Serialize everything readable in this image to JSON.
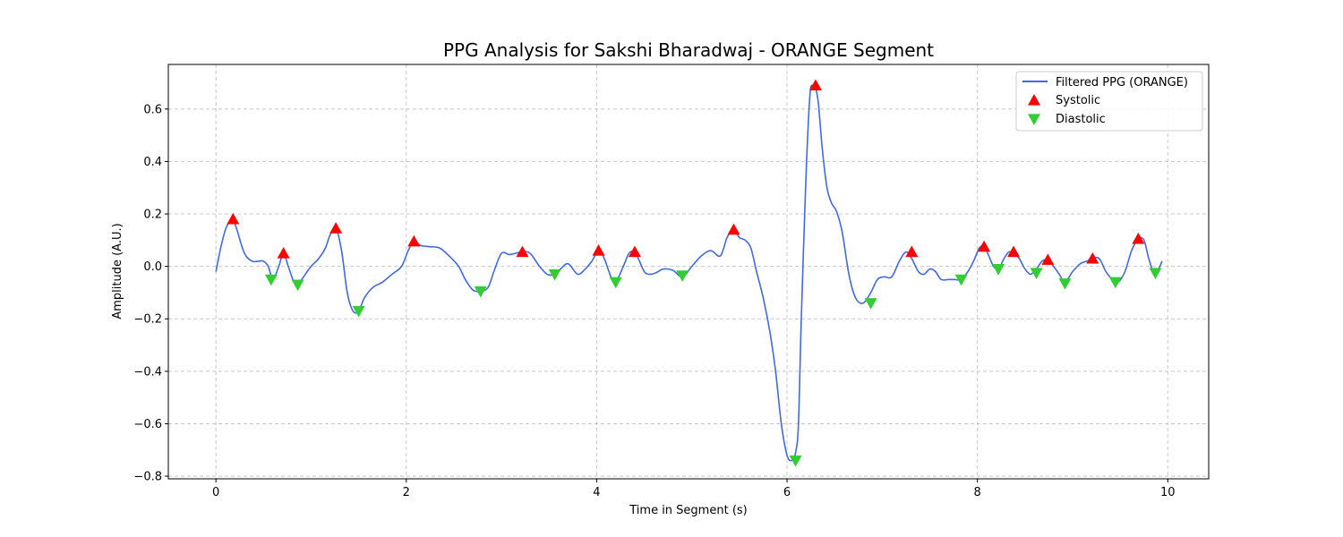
{
  "chart_data": {
    "type": "line",
    "title": "PPG Analysis for Sakshi Bharadwaj - ORANGE Segment",
    "xlabel": "Time in Segment (s)",
    "ylabel": "Amplitude (A.U.)",
    "xlim": [
      -0.5,
      10.43
    ],
    "ylim": [
      -0.81,
      0.77
    ],
    "xticks": [
      0,
      2,
      4,
      6,
      8,
      10
    ],
    "yticks": [
      -0.8,
      -0.6,
      -0.4,
      -0.2,
      0.0,
      0.2,
      0.4,
      0.6
    ],
    "xtick_labels": [
      "0",
      "2",
      "4",
      "6",
      "8",
      "10"
    ],
    "ytick_labels": [
      "−0.8",
      "−0.6",
      "−0.4",
      "−0.2",
      "0.0",
      "0.2",
      "0.4",
      "0.6"
    ],
    "grid": true,
    "legend_position": "top-right",
    "colors": {
      "line": "#4169e1",
      "systolic": "#ff0000",
      "diastolic": "#32cd32"
    },
    "series": [
      {
        "name": "Filtered PPG (ORANGE)",
        "kind": "line",
        "x": [
          0.0,
          0.05,
          0.1,
          0.15,
          0.18,
          0.22,
          0.3,
          0.38,
          0.45,
          0.5,
          0.55,
          0.6,
          0.66,
          0.71,
          0.76,
          0.82,
          0.86,
          0.92,
          1.0,
          1.08,
          1.15,
          1.2,
          1.26,
          1.32,
          1.38,
          1.44,
          1.5,
          1.56,
          1.65,
          1.75,
          1.85,
          1.95,
          2.02,
          2.08,
          2.15,
          2.25,
          2.35,
          2.45,
          2.55,
          2.62,
          2.7,
          2.78,
          2.86,
          2.92,
          3.0,
          3.08,
          3.15,
          3.22,
          3.3,
          3.4,
          3.48,
          3.55,
          3.62,
          3.7,
          3.8,
          3.88,
          3.95,
          4.02,
          4.08,
          4.15,
          4.2,
          4.28,
          4.34,
          4.4,
          4.45,
          4.5,
          4.55,
          4.62,
          4.7,
          4.8,
          4.9,
          5.0,
          5.1,
          5.2,
          5.3,
          5.37,
          5.44,
          5.5,
          5.56,
          5.62,
          5.68,
          5.75,
          5.82,
          5.88,
          5.94,
          6.0,
          6.05,
          6.09,
          6.12,
          6.15,
          6.2,
          6.24,
          6.27,
          6.3,
          6.33,
          6.37,
          6.42,
          6.47,
          6.52,
          6.58,
          6.65,
          6.72,
          6.8,
          6.88,
          6.95,
          7.02,
          7.1,
          7.18,
          7.25,
          7.31,
          7.38,
          7.44,
          7.5,
          7.56,
          7.62,
          7.7,
          7.76,
          7.83,
          7.9,
          7.96,
          8.02,
          8.07,
          8.12,
          8.17,
          8.22,
          8.28,
          8.33,
          8.38,
          8.44,
          8.5,
          8.56,
          8.62,
          8.68,
          8.74,
          8.8,
          8.86,
          8.92,
          9.0,
          9.08,
          9.15,
          9.21,
          9.28,
          9.35,
          9.42,
          9.48,
          9.55,
          9.62,
          9.69,
          9.75,
          9.8,
          9.85,
          9.9,
          9.94
        ],
        "y": [
          -0.02,
          0.07,
          0.14,
          0.175,
          0.18,
          0.14,
          0.05,
          0.02,
          0.02,
          0.02,
          0.0,
          -0.05,
          0.0,
          0.05,
          0.0,
          -0.06,
          -0.07,
          -0.04,
          0.0,
          0.03,
          0.07,
          0.12,
          0.145,
          0.06,
          -0.1,
          -0.17,
          -0.17,
          -0.12,
          -0.08,
          -0.06,
          -0.03,
          0.0,
          0.06,
          0.095,
          0.08,
          0.075,
          0.07,
          0.04,
          0.0,
          -0.05,
          -0.09,
          -0.095,
          -0.08,
          -0.02,
          0.05,
          0.045,
          0.05,
          0.055,
          0.05,
          0.0,
          -0.03,
          -0.03,
          -0.01,
          0.01,
          -0.03,
          -0.01,
          0.02,
          0.06,
          0.03,
          -0.04,
          -0.06,
          0.0,
          0.05,
          0.055,
          0.02,
          -0.02,
          -0.03,
          -0.025,
          -0.01,
          -0.015,
          -0.04,
          0.0,
          0.04,
          0.06,
          0.04,
          0.11,
          0.14,
          0.11,
          0.1,
          0.07,
          -0.02,
          -0.12,
          -0.25,
          -0.4,
          -0.6,
          -0.72,
          -0.74,
          -0.71,
          -0.6,
          -0.2,
          0.35,
          0.65,
          0.69,
          0.68,
          0.62,
          0.45,
          0.3,
          0.24,
          0.21,
          0.13,
          -0.03,
          -0.12,
          -0.14,
          -0.1,
          -0.05,
          -0.04,
          -0.04,
          0.02,
          0.055,
          0.03,
          -0.02,
          -0.03,
          -0.01,
          -0.02,
          -0.05,
          -0.05,
          -0.05,
          -0.05,
          -0.02,
          0.02,
          0.07,
          0.075,
          0.04,
          0.0,
          -0.01,
          0.03,
          0.055,
          0.05,
          0.03,
          -0.01,
          -0.03,
          -0.01,
          0.02,
          0.025,
          0.0,
          -0.03,
          -0.06,
          -0.02,
          0.01,
          0.02,
          0.03,
          0.03,
          -0.02,
          -0.05,
          -0.06,
          -0.02,
          0.06,
          0.105,
          0.1,
          0.03,
          -0.02,
          -0.01,
          0.02
        ]
      },
      {
        "name": "Systolic",
        "kind": "marker",
        "x": [
          0.18,
          0.71,
          1.26,
          2.08,
          3.22,
          4.02,
          4.4,
          5.44,
          6.3,
          7.31,
          8.07,
          8.38,
          8.74,
          9.21,
          9.69
        ],
        "y": [
          0.18,
          0.05,
          0.145,
          0.095,
          0.055,
          0.06,
          0.055,
          0.14,
          0.69,
          0.055,
          0.075,
          0.055,
          0.025,
          0.03,
          0.105
        ]
      },
      {
        "name": "Diastolic",
        "kind": "marker",
        "x": [
          0.58,
          0.86,
          1.5,
          2.78,
          3.56,
          4.2,
          4.9,
          6.09,
          6.88,
          7.83,
          8.22,
          8.62,
          8.92,
          9.45,
          9.87
        ],
        "y": [
          -0.05,
          -0.07,
          -0.17,
          -0.095,
          -0.03,
          -0.06,
          -0.035,
          -0.74,
          -0.14,
          -0.05,
          -0.01,
          -0.025,
          -0.065,
          -0.06,
          -0.025
        ]
      }
    ]
  }
}
